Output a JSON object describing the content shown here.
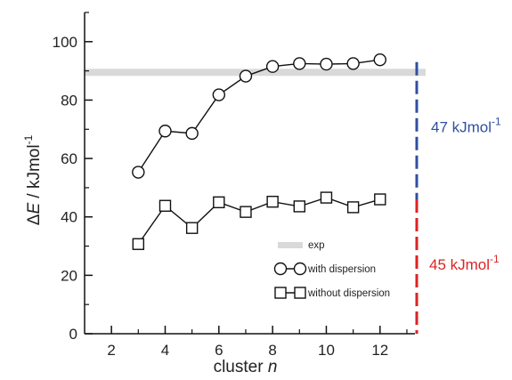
{
  "chart_data": {
    "type": "line",
    "xlabel": {
      "text": "cluster ",
      "var": "n"
    },
    "ylabel": {
      "prefix": "Δ",
      "var": "E",
      "unit": " / kJmol",
      "sup": "-1"
    },
    "xlim": [
      1,
      13.3
    ],
    "ylim": [
      0,
      110
    ],
    "xticks": [
      2,
      4,
      6,
      8,
      10,
      12
    ],
    "yticks": [
      0,
      20,
      40,
      60,
      80,
      100
    ],
    "x": [
      3,
      4,
      5,
      6,
      7,
      8,
      9,
      10,
      11,
      12
    ],
    "series": [
      {
        "name": "with dispersion",
        "marker": "circle",
        "values": [
          55.3,
          69.4,
          68.6,
          81.8,
          88.2,
          91.5,
          92.5,
          92.3,
          92.5,
          93.8
        ]
      },
      {
        "name": "without dispersion",
        "marker": "square",
        "values": [
          30.7,
          43.8,
          36.2,
          45.0,
          41.7,
          45.2,
          43.6,
          46.6,
          43.3,
          46.0
        ]
      }
    ],
    "exp": {
      "name": "exp",
      "value": 89.5,
      "color": "#d9d9d9"
    },
    "legend": {
      "placement": "lower-right"
    },
    "grid": false,
    "annotations": [
      {
        "label": "47 kJmol",
        "sup": "-1",
        "color": "#2f4f9f",
        "from": 46,
        "to": 93
      },
      {
        "label": "45 kJmol",
        "sup": "-1",
        "color": "#dd2222",
        "from": 0,
        "to": 46
      }
    ]
  }
}
